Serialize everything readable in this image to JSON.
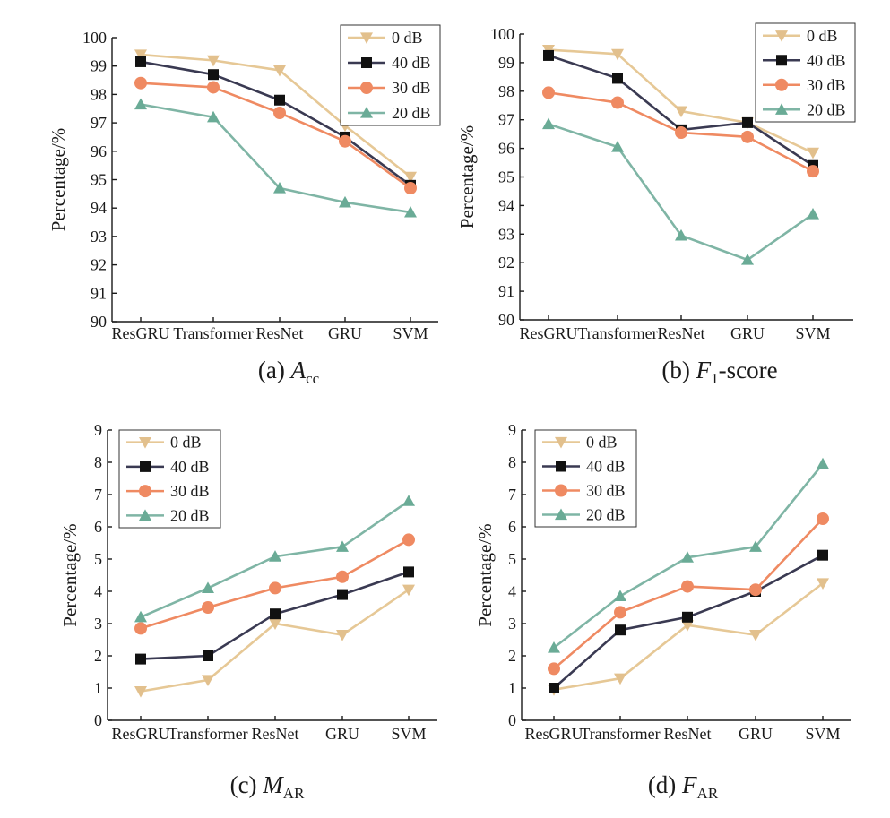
{
  "chart_data": [
    {
      "type": "line",
      "id": "acc",
      "caption": {
        "prefix": "(a) ",
        "main": "A",
        "sub": "cc",
        "suffix": ""
      },
      "ylabel": "Percentage/%",
      "xlabel": "",
      "categories": [
        "ResGRU",
        "Transformer",
        "ResNet",
        "GRU",
        "SVM"
      ],
      "ylim": [
        90,
        100
      ],
      "yticks": [
        90,
        91,
        92,
        93,
        94,
        95,
        96,
        97,
        98,
        99,
        100
      ],
      "legend_position": "top-right",
      "series": [
        {
          "name": "0 dB",
          "values": [
            99.4,
            99.2,
            98.85,
            96.9,
            95.1
          ]
        },
        {
          "name": "40 dB",
          "values": [
            99.15,
            98.7,
            97.8,
            96.5,
            94.8
          ]
        },
        {
          "name": "30 dB",
          "values": [
            98.4,
            98.25,
            97.35,
            96.35,
            94.7
          ]
        },
        {
          "name": "20 dB",
          "values": [
            97.65,
            97.2,
            94.7,
            94.2,
            93.85
          ]
        }
      ]
    },
    {
      "type": "line",
      "id": "f1",
      "caption": {
        "prefix": "(b) ",
        "main": "F",
        "sub": "1",
        "suffix": "-score"
      },
      "ylabel": "Percentage/%",
      "xlabel": "",
      "categories": [
        "ResGRU",
        "Transformer",
        "ResNet",
        "GRU",
        "SVM"
      ],
      "ylim": [
        90,
        100
      ],
      "yticks": [
        90,
        91,
        92,
        93,
        94,
        95,
        96,
        97,
        98,
        99,
        100
      ],
      "legend_position": "top-right",
      "series": [
        {
          "name": "0 dB",
          "values": [
            99.45,
            99.3,
            97.3,
            96.9,
            95.85
          ]
        },
        {
          "name": "40 dB",
          "values": [
            99.25,
            98.45,
            96.65,
            96.9,
            95.4
          ]
        },
        {
          "name": "30 dB",
          "values": [
            97.95,
            97.6,
            96.55,
            96.4,
            95.2
          ]
        },
        {
          "name": "20 dB",
          "values": [
            96.85,
            96.05,
            92.95,
            92.1,
            93.7
          ]
        }
      ]
    },
    {
      "type": "line",
      "id": "mar",
      "caption": {
        "prefix": "(c) ",
        "main": "M",
        "sub": "AR",
        "suffix": ""
      },
      "ylabel": "Percentage/%",
      "xlabel": "",
      "categories": [
        "ResGRU",
        "Transformer",
        "ResNet",
        "GRU",
        "SVM"
      ],
      "ylim": [
        0,
        9
      ],
      "yticks": [
        0,
        1,
        2,
        3,
        4,
        5,
        6,
        7,
        8,
        9
      ],
      "legend_position": "top-left",
      "series": [
        {
          "name": "0 dB",
          "values": [
            0.9,
            1.25,
            3.0,
            2.65,
            4.05
          ]
        },
        {
          "name": "40 dB",
          "values": [
            1.9,
            2.0,
            3.3,
            3.9,
            4.6
          ]
        },
        {
          "name": "30 dB",
          "values": [
            2.85,
            3.5,
            4.1,
            4.45,
            5.6
          ]
        },
        {
          "name": "20 dB",
          "values": [
            3.2,
            4.1,
            5.08,
            5.38,
            6.8
          ]
        }
      ]
    },
    {
      "type": "line",
      "id": "far",
      "caption": {
        "prefix": "(d) ",
        "main": "F",
        "sub": "AR",
        "suffix": ""
      },
      "ylabel": "Percentage/%",
      "xlabel": "",
      "categories": [
        "ResGRU",
        "Transformer",
        "ResNet",
        "GRU",
        "SVM"
      ],
      "ylim": [
        0,
        9
      ],
      "yticks": [
        0,
        1,
        2,
        3,
        4,
        5,
        6,
        7,
        8,
        9
      ],
      "legend_position": "top-left",
      "series": [
        {
          "name": "0 dB",
          "values": [
            0.95,
            1.3,
            2.95,
            2.65,
            4.25
          ]
        },
        {
          "name": "40 dB",
          "values": [
            1.0,
            2.8,
            3.2,
            4.0,
            5.12
          ]
        },
        {
          "name": "30 dB",
          "values": [
            1.6,
            3.35,
            4.15,
            4.05,
            6.25
          ]
        },
        {
          "name": "20 dB",
          "values": [
            2.25,
            3.85,
            5.05,
            5.38,
            7.95
          ]
        }
      ]
    }
  ],
  "series_style": [
    {
      "name": "0 dB",
      "color": "#e2c08d",
      "line": "#e6c896",
      "marker": "triangle-down"
    },
    {
      "name": "40 dB",
      "color": "#111111",
      "line": "#3a3a52",
      "marker": "square"
    },
    {
      "name": "30 dB",
      "color": "#ef8a62",
      "line": "#ef8a62",
      "marker": "circle"
    },
    {
      "name": "20 dB",
      "color": "#6aab96",
      "line": "#7fb5a5",
      "marker": "triangle-up"
    }
  ]
}
